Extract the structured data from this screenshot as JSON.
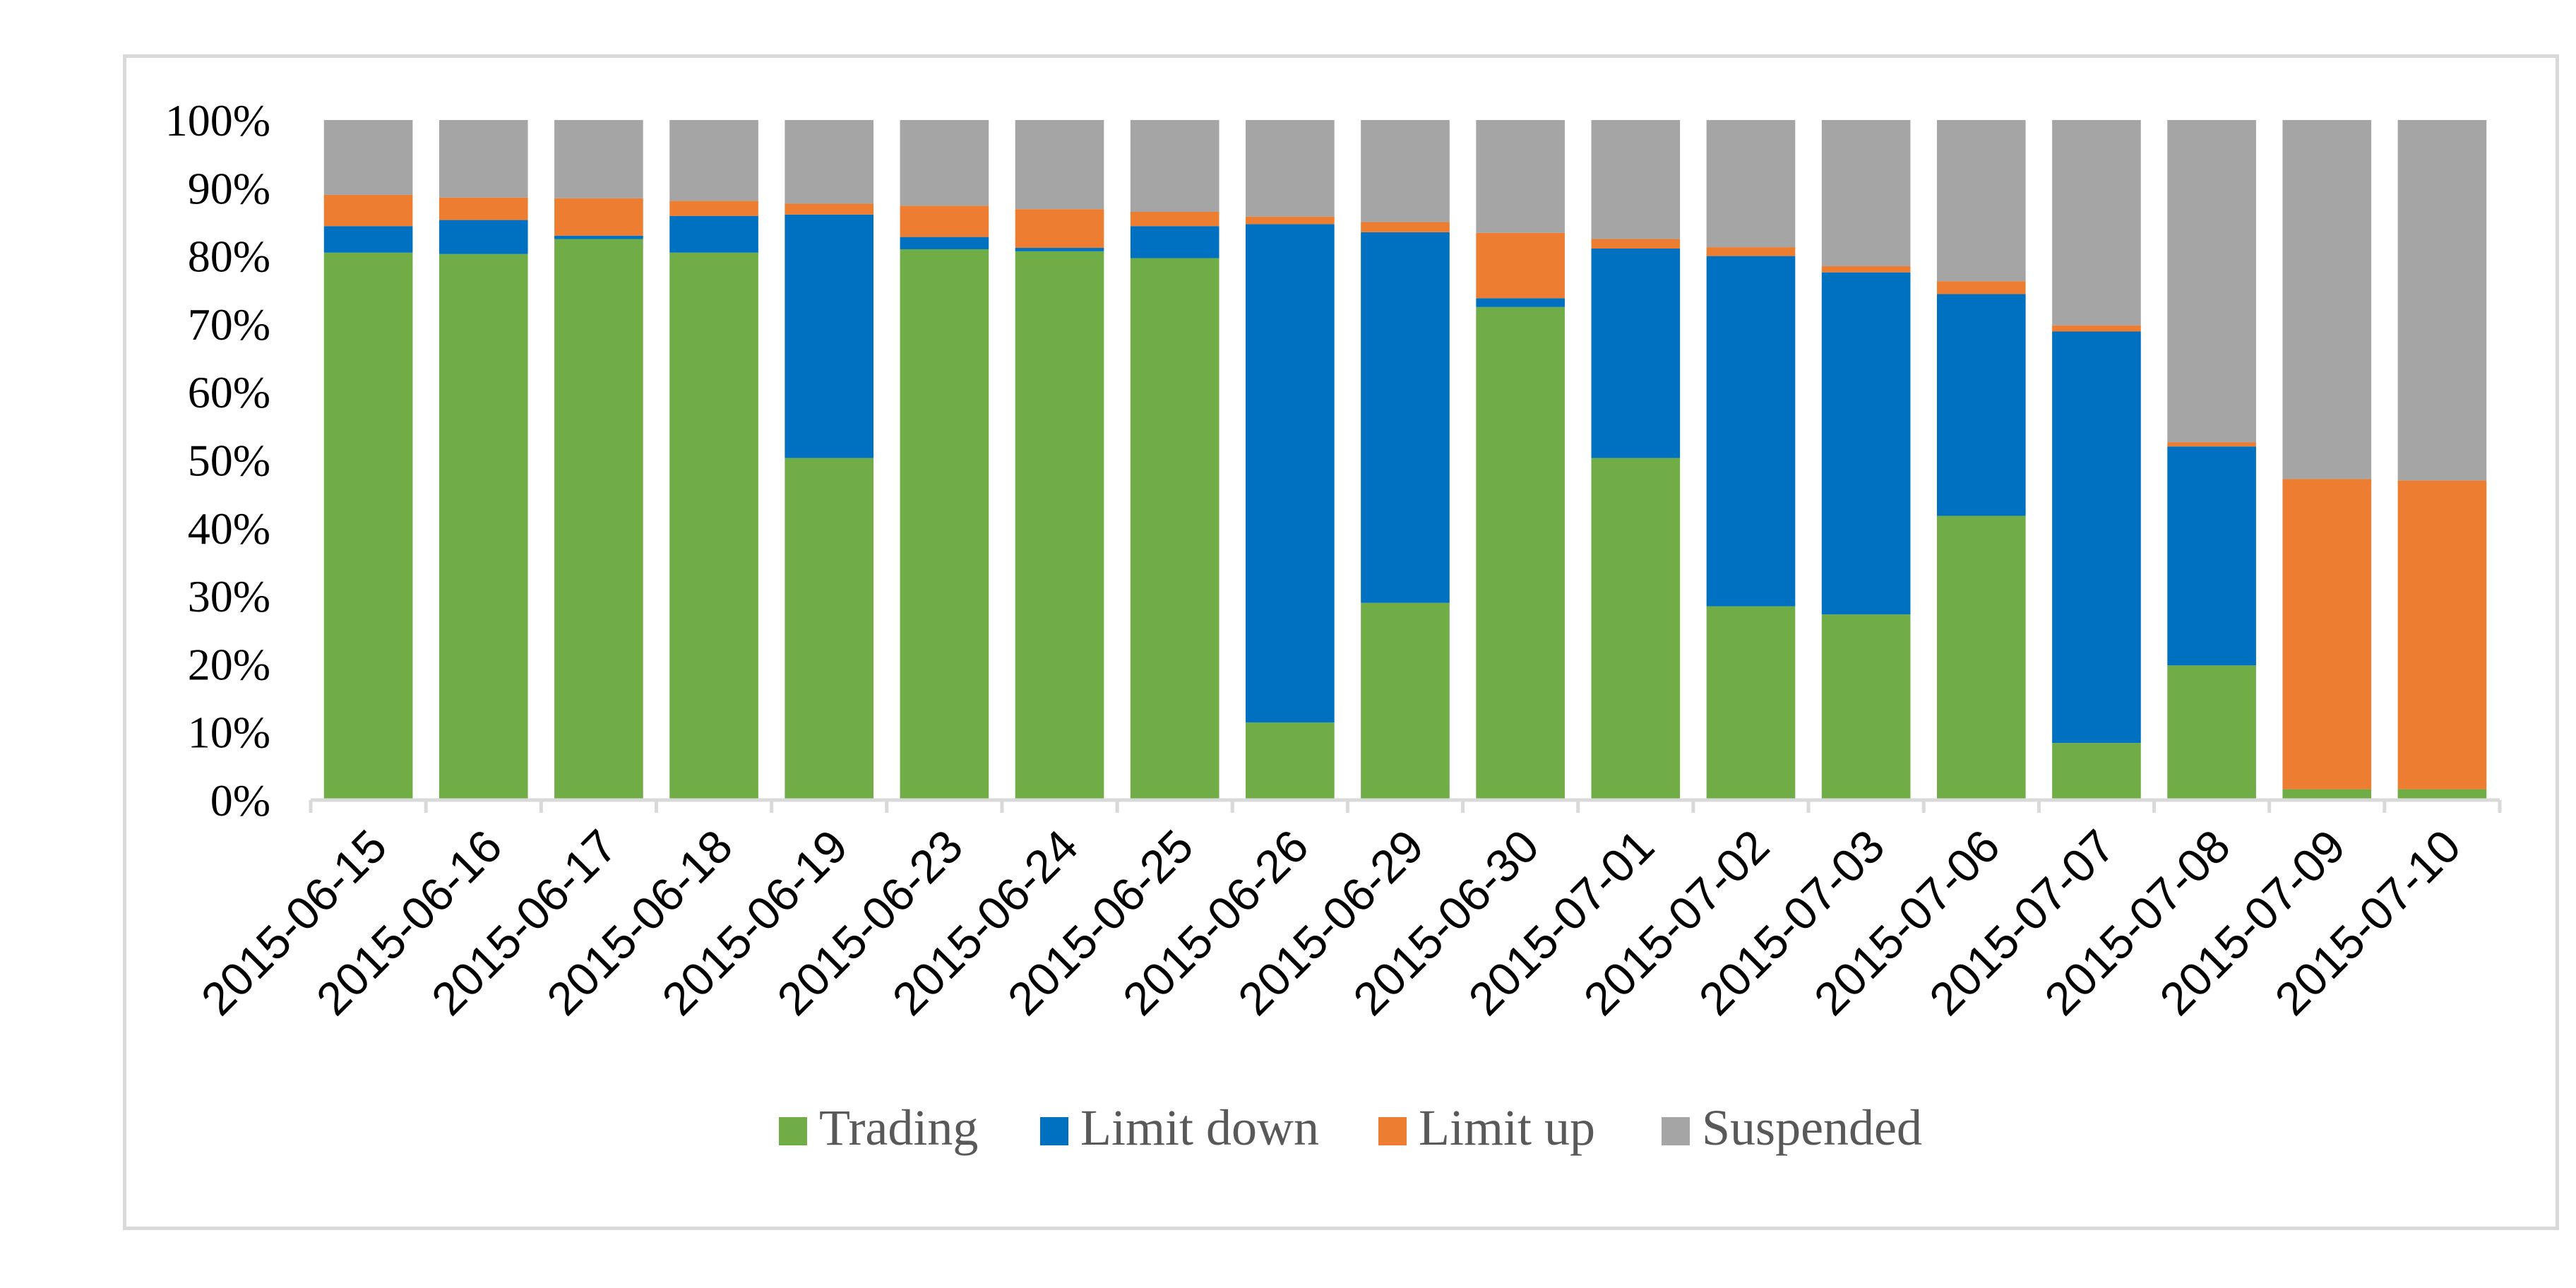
{
  "chart_data": {
    "type": "bar",
    "stacked": true,
    "percent_stacked": true,
    "categories": [
      "2015-06-15",
      "2015-06-16",
      "2015-06-17",
      "2015-06-18",
      "2015-06-19",
      "2015-06-23",
      "2015-06-24",
      "2015-06-25",
      "2015-06-26",
      "2015-06-29",
      "2015-06-30",
      "2015-07-01",
      "2015-07-02",
      "2015-07-03",
      "2015-07-06",
      "2015-07-07",
      "2015-07-08",
      "2015-07-09",
      "2015-07-10"
    ],
    "series": [
      {
        "name": "Trading",
        "color": "#70ad47",
        "values": [
          80.5,
          80.3,
          82.5,
          80.5,
          50.3,
          81.0,
          80.7,
          79.7,
          11.4,
          29.0,
          72.5,
          50.3,
          28.5,
          27.3,
          41.8,
          8.4,
          19.8,
          1.6,
          1.6
        ]
      },
      {
        "name": "Limit down",
        "color": "#0070c0",
        "values": [
          3.9,
          5.0,
          0.5,
          5.4,
          35.8,
          1.8,
          0.5,
          4.7,
          73.3,
          54.5,
          1.3,
          30.8,
          51.5,
          50.3,
          32.6,
          60.5,
          32.2,
          0,
          0
        ]
      },
      {
        "name": "Limit up",
        "color": "#ed7d31",
        "values": [
          4.6,
          3.3,
          5.5,
          2.2,
          1.6,
          4.6,
          5.7,
          2.1,
          1.1,
          1.5,
          9.6,
          1.4,
          1.3,
          0.9,
          1.9,
          0.9,
          0.6,
          45.6,
          45.4
        ]
      },
      {
        "name": "Suspended",
        "color": "#a5a5a5",
        "values": [
          11.0,
          11.4,
          11.5,
          11.9,
          12.3,
          12.6,
          13.1,
          13.5,
          14.2,
          15.0,
          16.6,
          17.5,
          18.7,
          21.5,
          23.7,
          30.2,
          47.4,
          52.8,
          53.0
        ]
      }
    ],
    "y_ticks": [
      "0%",
      "10%",
      "20%",
      "30%",
      "40%",
      "50%",
      "60%",
      "70%",
      "80%",
      "90%",
      "100%"
    ],
    "ylim": [
      0,
      100
    ],
    "title": "",
    "xlabel": "",
    "ylabel": "",
    "grid": false,
    "legend_position": "bottom"
  }
}
